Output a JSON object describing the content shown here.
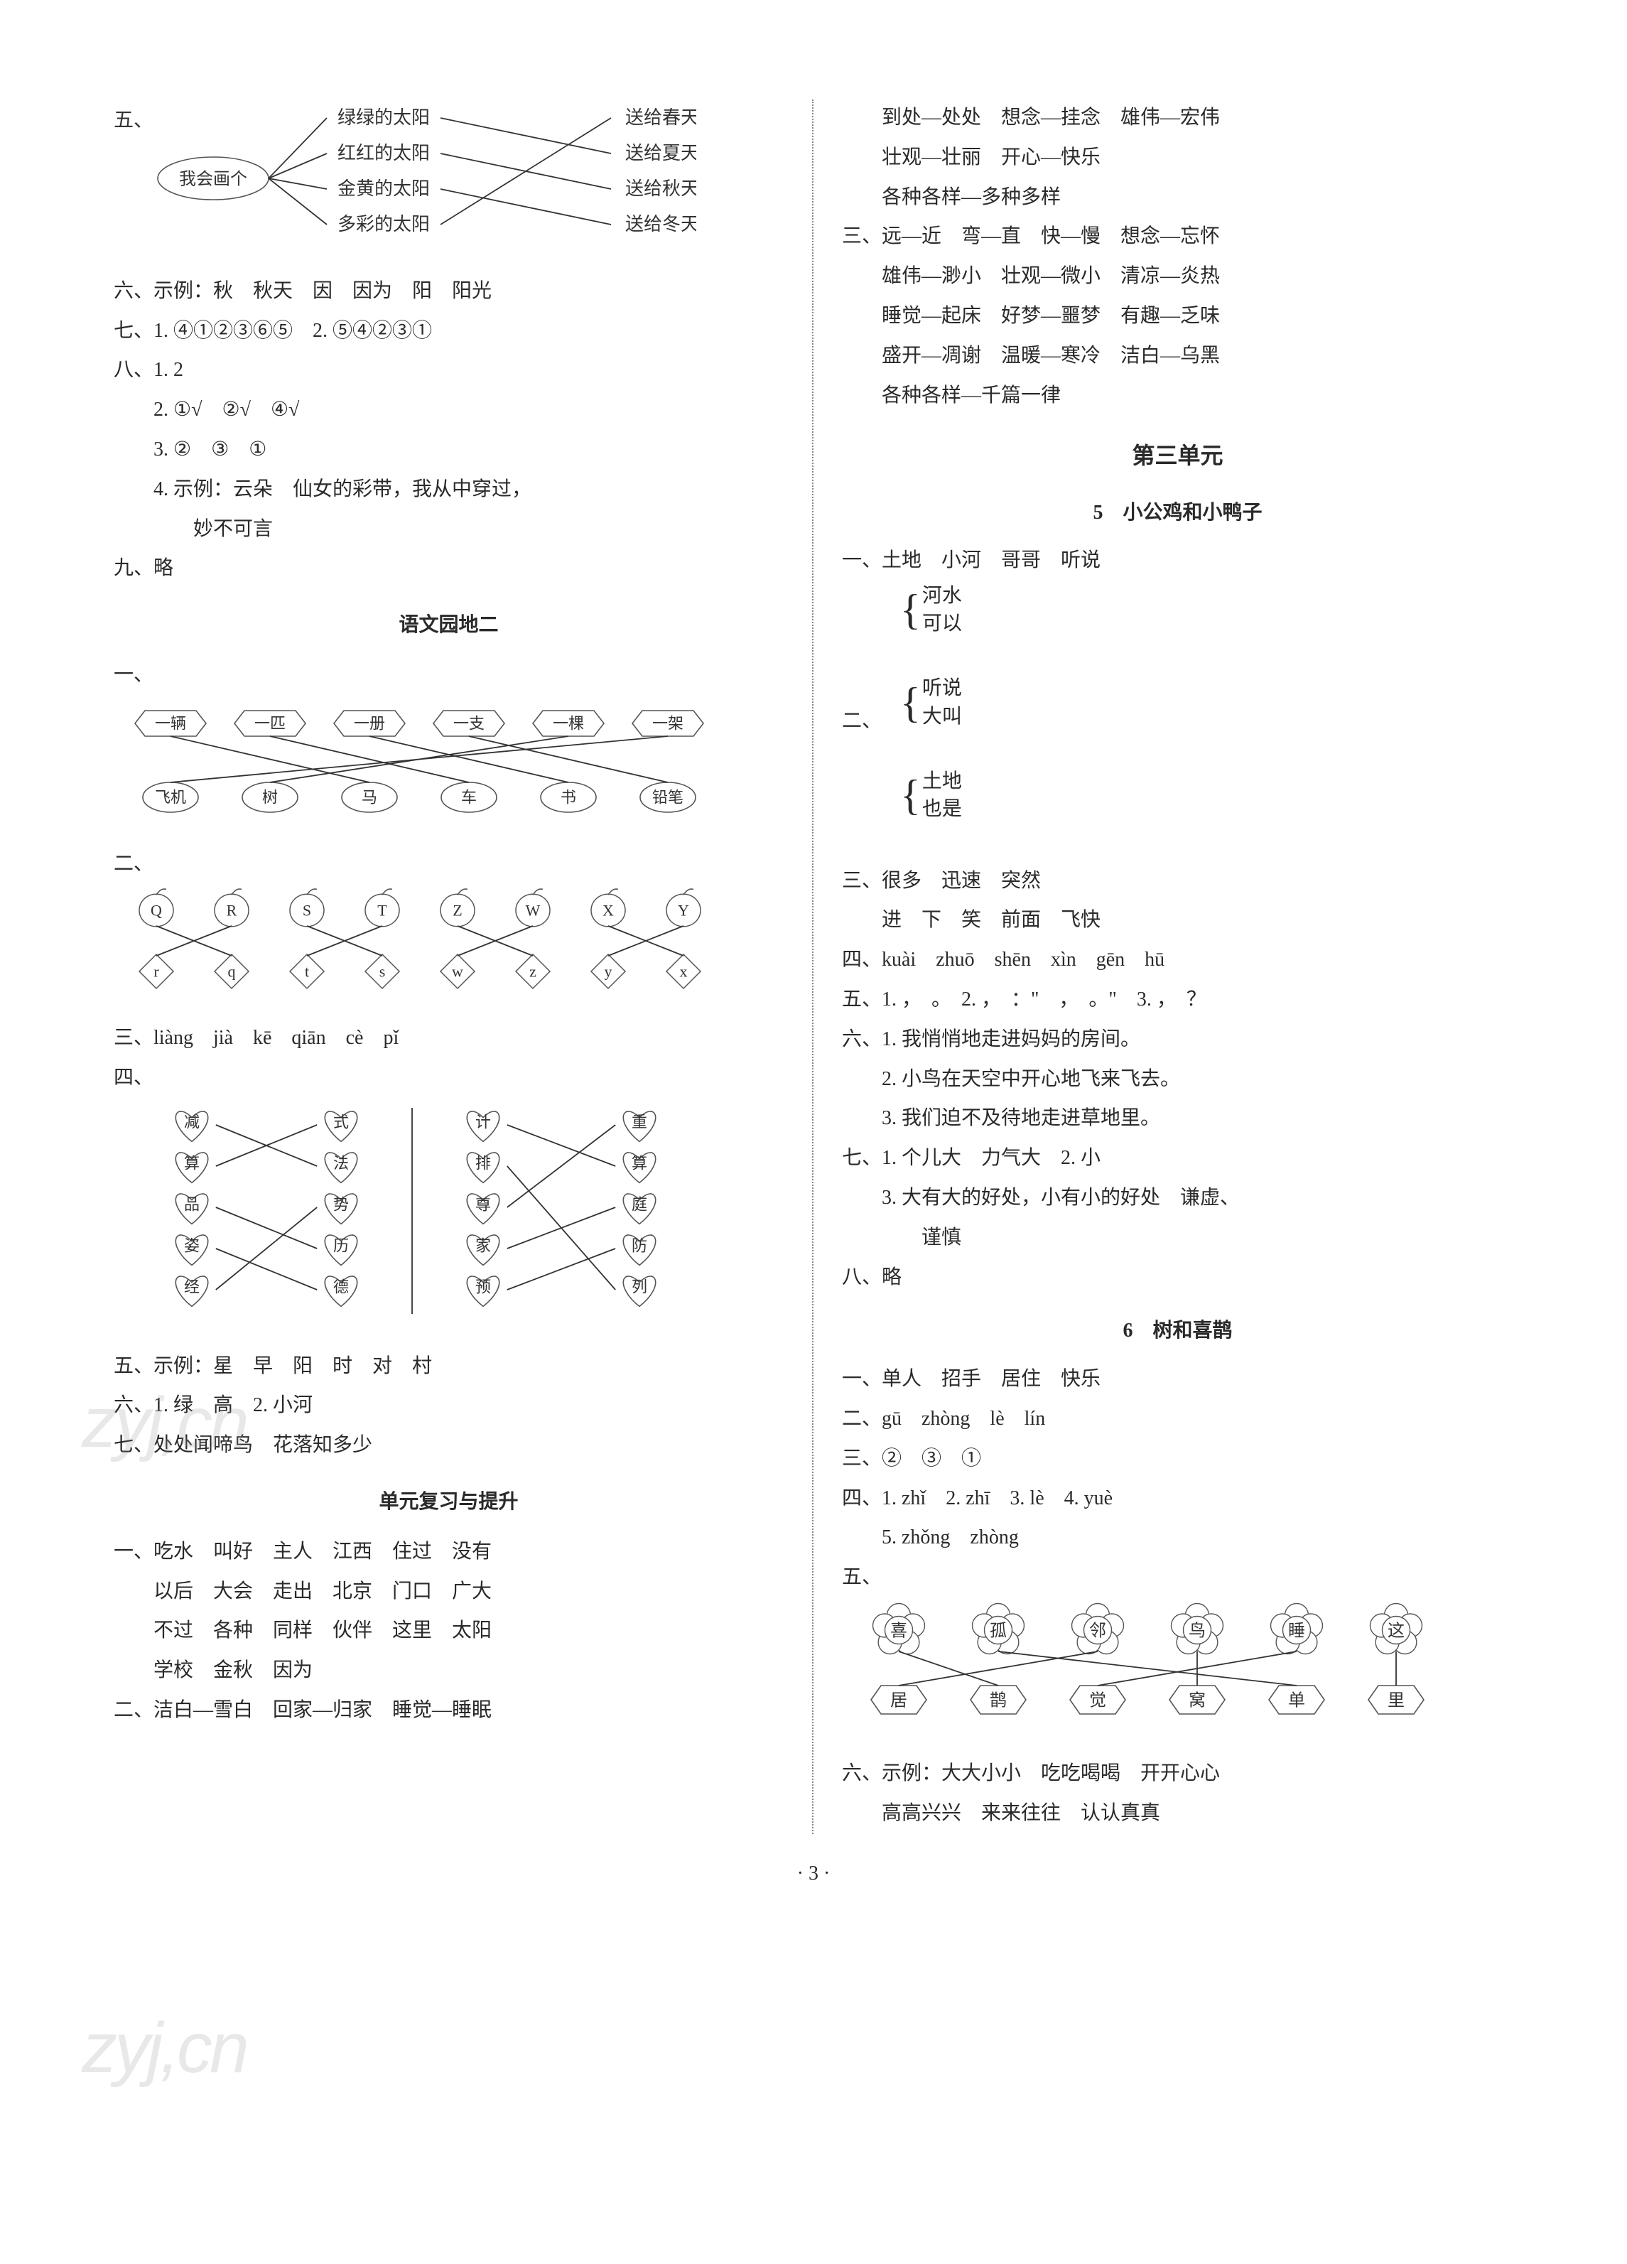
{
  "page_number": "· 3 ·",
  "watermark": "zyj,cn",
  "stroke_color": "#333333",
  "shape_stroke": "#555555",
  "box_fill": "#ffffff",
  "divider_color": "#888888",
  "font_size_body": 28,
  "font_size_title": 32,
  "left": {
    "q5": {
      "label": "五、",
      "center_label": "我会画个",
      "left_items": [
        "绿绿的太阳",
        "红红的太阳",
        "金黄的太阳",
        "多彩的太阳"
      ],
      "right_items": [
        "送给春天",
        "送给夏天",
        "送给秋天",
        "送给冬天"
      ],
      "edges": [
        [
          0,
          1
        ],
        [
          1,
          2
        ],
        [
          2,
          3
        ],
        [
          3,
          0
        ]
      ]
    },
    "q6": "六、示例：秋　秋天　因　因为　阳　阳光",
    "q7": "七、1. ④①②③⑥⑤　2. ⑤④②③①",
    "q8": {
      "head": "八、1. 2",
      "l2": "2. ①√　②√　④√",
      "l3": "3. ②　③　①",
      "l4a": "4. 示例：云朵　仙女的彩带，我从中穿过，",
      "l4b": "妙不可言"
    },
    "q9": "九、略",
    "title_yuwen": "语文园地二",
    "q1b": {
      "label": "一、",
      "top": [
        "一辆",
        "一匹",
        "一册",
        "一支",
        "一棵",
        "一架"
      ],
      "bottom": [
        "飞机",
        "树",
        "马",
        "车",
        "书",
        "铅笔"
      ],
      "edges": [
        [
          0,
          2
        ],
        [
          1,
          3
        ],
        [
          2,
          4
        ],
        [
          3,
          5
        ],
        [
          4,
          1
        ],
        [
          5,
          0
        ]
      ]
    },
    "q2b": {
      "label": "二、",
      "top": [
        "Q",
        "R",
        "S",
        "T",
        "Z",
        "W",
        "X",
        "Y"
      ],
      "bottom": [
        "r",
        "q",
        "t",
        "s",
        "w",
        "z",
        "y",
        "x"
      ],
      "edges": [
        [
          0,
          1
        ],
        [
          1,
          0
        ],
        [
          2,
          3
        ],
        [
          3,
          2
        ],
        [
          4,
          5
        ],
        [
          5,
          4
        ],
        [
          6,
          7
        ],
        [
          7,
          6
        ]
      ]
    },
    "q3b": "三、liàng　jià　kē　qiān　cè　pǐ",
    "q4b": {
      "label": "四、",
      "colA_left": [
        "减",
        "算",
        "品",
        "姿",
        "经"
      ],
      "colA_right": [
        "式",
        "法",
        "势",
        "历",
        "德"
      ],
      "edgesA": [
        [
          0,
          1
        ],
        [
          1,
          0
        ],
        [
          2,
          3
        ],
        [
          3,
          4
        ],
        [
          4,
          2
        ]
      ],
      "colB_left": [
        "计",
        "排",
        "尊",
        "家",
        "预"
      ],
      "colB_right": [
        "重",
        "算",
        "庭",
        "防",
        "列"
      ],
      "edgesB": [
        [
          0,
          1
        ],
        [
          1,
          4
        ],
        [
          2,
          0
        ],
        [
          3,
          2
        ],
        [
          4,
          3
        ]
      ]
    },
    "q5b": "五、示例：星　早　阳　时　对　村",
    "q6b": "六、1. 绿　高　2. 小河",
    "q7b": "七、处处闻啼鸟　花落知多少",
    "title_fuxi": "单元复习与提升",
    "q1c_1": "一、吃水　叫好　主人　江西　住过　没有",
    "q1c_2": "以后　大会　走出　北京　门口　广大",
    "q1c_3": "不过　各种　同样　伙伴　这里　太阳",
    "q1c_4": "学校　金秋　因为",
    "q2c": "二、洁白—雪白　回家—归家　睡觉—睡眠"
  },
  "right": {
    "pre1": "到处—处处　想念—挂念　雄伟—宏伟",
    "pre2": "壮观—壮丽　开心—快乐",
    "pre3": "各种各样—多种多样",
    "q3r_1": "三、远—近　弯—直　快—慢　想念—忘怀",
    "q3r_2": "雄伟—渺小　壮观—微小　清凉—炎热",
    "q3r_3": "睡觉—起床　好梦—噩梦　有趣—乏味",
    "q3r_4": "盛开—凋谢　温暖—寒冷　洁白—乌黑",
    "q3r_5": "各种各样—千篇一律",
    "unit3": "第三单元",
    "lesson5": "5　小公鸡和小鸭子",
    "r1": "一、土地　小河　哥哥　听说",
    "r2": {
      "label": "二、",
      "pairs": [
        [
          "河水",
          "可以"
        ],
        [
          "听说",
          "大叫"
        ],
        [
          "土地",
          "也是"
        ]
      ]
    },
    "r3a": "三、很多　迅速　突然",
    "r3b": "进　下　笑　前面　飞快",
    "r4": "四、kuài　zhuō　shēn　xìn　gēn　hū",
    "r5": "五、1. ，　。　2. ，　：\"　，　。\"　3. ，　？",
    "r6_1": "六、1. 我悄悄地走进妈妈的房间。",
    "r6_2": "2. 小鸟在天空中开心地飞来飞去。",
    "r6_3": "3. 我们迫不及待地走进草地里。",
    "r7_1": "七、1. 个儿大　力气大　2. 小",
    "r7_2": "3. 大有大的好处，小有小的好处　谦虚、",
    "r7_3": "谨慎",
    "r8": "八、略",
    "lesson6": "6　树和喜鹊",
    "r61": "一、单人　招手　居住　快乐",
    "r62": "二、gū　zhòng　lè　lín",
    "r63": "三、②　③　①",
    "r64a": "四、1. zhǐ　2. zhī　3. lè　4. yuè",
    "r64b": "5. zhǒng　zhòng",
    "r65": {
      "label": "五、",
      "top": [
        "喜",
        "孤",
        "邻",
        "鸟",
        "睡",
        "这"
      ],
      "bottom": [
        "居",
        "鹊",
        "觉",
        "窝",
        "单",
        "里"
      ],
      "edges": [
        [
          0,
          1
        ],
        [
          1,
          4
        ],
        [
          2,
          0
        ],
        [
          3,
          3
        ],
        [
          4,
          2
        ],
        [
          5,
          5
        ]
      ]
    },
    "r66a": "六、示例：大大小小　吃吃喝喝　开开心心",
    "r66b": "高高兴兴　来来往往　认认真真"
  }
}
